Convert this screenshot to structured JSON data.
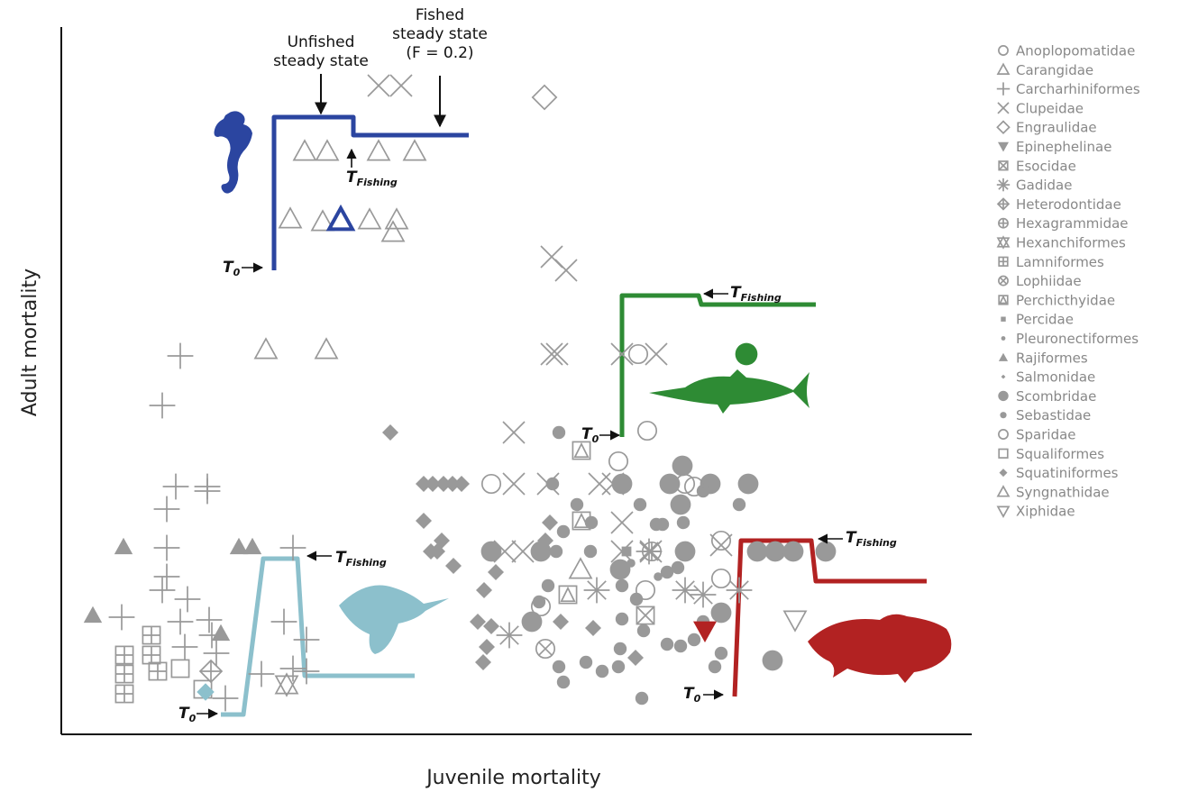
{
  "chart_data": {
    "type": "scatter",
    "x_label": "Juvenile mortality",
    "y_label": "Adult mortality",
    "xlim": [
      0,
      1010
    ],
    "ylim": [
      0,
      785
    ],
    "series": [
      {
        "name": "Anoplopomatidae",
        "marker": "circle-open",
        "color": "#999999",
        "x": [
          477,
          640,
          650,
          618,
          692,
          732,
          732,
          648,
          532
        ],
        "values": [
          278,
          422,
          337,
          303,
          278,
          215,
          173,
          160,
          142
        ]
      },
      {
        "name": "Carangidae",
        "marker": "triangle-open",
        "color": "#999999",
        "x": [
          227,
          294,
          576
        ],
        "values": [
          427,
          427,
          183
        ]
      },
      {
        "name": "Carcharhiniformes",
        "marker": "plus",
        "color": "#999999",
        "x": [
          132,
          112,
          127,
          162,
          117,
          162,
          117,
          257,
          117,
          140,
          67,
          132,
          164,
          247,
          167,
          137,
          172,
          222,
          272,
          272,
          182,
          257,
          112
        ],
        "values": [
          420,
          365,
          275,
          275,
          250,
          270,
          207,
          207,
          175,
          150,
          130,
          125,
          127,
          125,
          110,
          97,
          90,
          67,
          105,
          70,
          40,
          73,
          160
        ]
      },
      {
        "name": "Clupeidae",
        "marker": "cross",
        "color": "#999999",
        "x": [
          352,
          377,
          544,
          560,
          544,
          550,
          622,
          660,
          502,
          502,
          540,
          597,
          612,
          492,
          512,
          622,
          654,
          622,
          732
        ],
        "values": [
          720,
          720,
          530,
          515,
          422,
          422,
          422,
          422,
          335,
          278,
          278,
          278,
          278,
          203,
          203,
          235,
          203,
          203,
          210
        ]
      },
      {
        "name": "Engraulidae",
        "marker": "diamond-open",
        "color": "#999999",
        "x": [
          536
        ],
        "values": [
          707
        ]
      },
      {
        "name": "Epinephelinae",
        "marker": "triangle-down",
        "color": "#999999",
        "x": [],
        "values": []
      },
      {
        "name": "Esocidae",
        "marker": "square-x",
        "color": "#999999",
        "x": [
          648
        ],
        "values": [
          132
        ]
      },
      {
        "name": "Gadidae",
        "marker": "asterisk",
        "color": "#999999",
        "x": [
          497,
          594,
          652,
          692,
          712,
          752
        ],
        "values": [
          110,
          160,
          203,
          160,
          155,
          160
        ]
      },
      {
        "name": "Heterodontidae",
        "marker": "diamond-plus",
        "color": "#999999",
        "x": [
          166
        ],
        "values": [
          70
        ]
      },
      {
        "name": "Hexagrammidae",
        "marker": "circle-plus",
        "color": "#999999",
        "x": [
          655
        ],
        "values": [
          203
        ]
      },
      {
        "name": "Hexanchiformes",
        "marker": "star-david",
        "color": "#999999",
        "x": [
          250
        ],
        "values": [
          55
        ]
      },
      {
        "name": "Lamniformes",
        "marker": "square-plus",
        "color": "#999999",
        "x": [
          70,
          100,
          70,
          107,
          100,
          70
        ],
        "values": [
          88,
          110,
          67,
          70,
          88,
          45
        ]
      },
      {
        "name": "Lophiidae",
        "marker": "circle-x",
        "color": "#999999",
        "x": [
          537
        ],
        "values": [
          95
        ]
      },
      {
        "name": "Perchicthyidae",
        "marker": "square-triangle",
        "color": "#999999",
        "x": [
          577,
          577,
          562
        ],
        "values": [
          315,
          237,
          155
        ]
      },
      {
        "name": "Percidae",
        "marker": "square",
        "color": "#999999",
        "x": [
          622,
          627
        ],
        "values": [
          278,
          203
        ]
      },
      {
        "name": "Pleuronectiformes",
        "marker": "dot-small",
        "color": "#999999",
        "x": [
          632,
          662
        ],
        "values": [
          190,
          175
        ]
      },
      {
        "name": "Rajiformes",
        "marker": "triangle",
        "color": "#999999",
        "x": [
          69,
          197,
          212,
          35,
          177
        ],
        "values": [
          208,
          208,
          208,
          132,
          112
        ]
      },
      {
        "name": "Salmonidae",
        "marker": "diamond-small",
        "color": "#999999",
        "x": [
          542
        ],
        "values": [
          278
        ]
      },
      {
        "name": "Scombridae",
        "marker": "circle-big",
        "color": "#999999",
        "x": [
          477,
          675,
          720,
          762,
          689,
          687,
          692,
          620,
          732,
          789,
          772,
          792,
          812,
          848,
          532,
          522,
          622
        ],
        "values": [
          203,
          278,
          278,
          278,
          298,
          255,
          203,
          183,
          135,
          82,
          203,
          203,
          203,
          203,
          203,
          125,
          278
        ]
      },
      {
        "name": "Sebastidae",
        "marker": "circle",
        "color": "#999999",
        "x": [
          552,
          545,
          572,
          557,
          549,
          540,
          530,
          552,
          557,
          582,
          600,
          620,
          644,
          618,
          646,
          672,
          687,
          622,
          638,
          667,
          690,
          642,
          660,
          672,
          587,
          622,
          702,
          725,
          732,
          752,
          684,
          712,
          588,
          712
        ],
        "values": [
          335,
          278,
          255,
          225,
          203,
          165,
          147,
          75,
          58,
          80,
          70,
          95,
          40,
          75,
          115,
          100,
          98,
          128,
          150,
          233,
          235,
          255,
          233,
          180,
          203,
          165,
          105,
          75,
          90,
          255,
          185,
          125,
          235,
          270
        ]
      },
      {
        "name": "Sparidae",
        "marker": "circle-open",
        "color": "#999999",
        "x": [
          702
        ],
        "values": [
          275
        ]
      },
      {
        "name": "Squaliformes",
        "marker": "square-open",
        "color": "#999999",
        "x": [
          132,
          157
        ],
        "values": [
          73,
          50
        ]
      },
      {
        "name": "Squatiniformes",
        "marker": "diamond",
        "color": "#999999",
        "x": [
          365,
          402,
          412,
          424,
          434,
          444,
          402,
          422,
          410,
          417,
          435,
          482,
          469,
          462,
          477,
          554,
          590,
          472,
          468,
          542,
          537,
          637
        ],
        "values": [
          335,
          278,
          278,
          278,
          278,
          278,
          237,
          215,
          203,
          203,
          187,
          180,
          160,
          125,
          120,
          125,
          118,
          97,
          80,
          235,
          215,
          85
        ]
      },
      {
        "name": "Syngnathidae",
        "marker": "triangle-open",
        "color": "#999999",
        "x": [
          270,
          295,
          352,
          392,
          254,
          290,
          342,
          372,
          368
        ],
        "values": [
          647,
          647,
          647,
          647,
          572,
          569,
          571,
          571,
          557
        ]
      },
      {
        "name": "Xiphidae",
        "marker": "triangle-down-open",
        "color": "#999999",
        "x": [
          814
        ],
        "values": [
          127
        ]
      }
    ],
    "highlights": [
      {
        "marker": "triangle-open",
        "color": "#2b45a0",
        "x": [
          310
        ],
        "values": [
          571
        ]
      },
      {
        "marker": "circle-big",
        "color": "#2e8b34",
        "x": [
          760
        ],
        "values": [
          422
        ]
      },
      {
        "marker": "triangle-down",
        "color": "#b22222",
        "x": [
          714
        ],
        "values": [
          115
        ]
      },
      {
        "marker": "diamond",
        "color": "#8cc0cc",
        "x": [
          160
        ],
        "values": [
          47
        ]
      }
    ],
    "trajectories": [
      {
        "color": "#2b45a0",
        "x": [
          236,
          236,
          324,
          324,
          452
        ],
        "y": [
          515,
          685,
          685,
          665,
          665
        ]
      },
      {
        "color": "#2e8b34",
        "x": [
          622,
          622,
          707,
          710,
          837
        ],
        "y": [
          330,
          487,
          487,
          477,
          477
        ]
      },
      {
        "color": "#8cc0cc",
        "x": [
          177,
          202,
          224,
          262,
          270,
          392
        ],
        "y": [
          22,
          22,
          195,
          195,
          65,
          65
        ]
      },
      {
        "color": "#b22222",
        "x": [
          747,
          754,
          832,
          837,
          960
        ],
        "y": [
          42,
          215,
          215,
          170,
          170
        ]
      }
    ],
    "annotations": [
      {
        "lines": [
          "Unfished",
          "steady state"
        ]
      },
      {
        "lines": [
          "Fished",
          "steady state",
          "(F = 0.2)"
        ]
      }
    ],
    "t_labels": [
      {
        "text": "T",
        "sub": "Fishing"
      },
      {
        "text": "T",
        "sub": "0"
      },
      {
        "text": "T",
        "sub": "Fishing"
      },
      {
        "text": "T",
        "sub": "0"
      },
      {
        "text": "T",
        "sub": "Fishing"
      },
      {
        "text": "T",
        "sub": "0"
      },
      {
        "text": "T",
        "sub": "Fishing"
      },
      {
        "text": "T",
        "sub": "0"
      }
    ]
  }
}
